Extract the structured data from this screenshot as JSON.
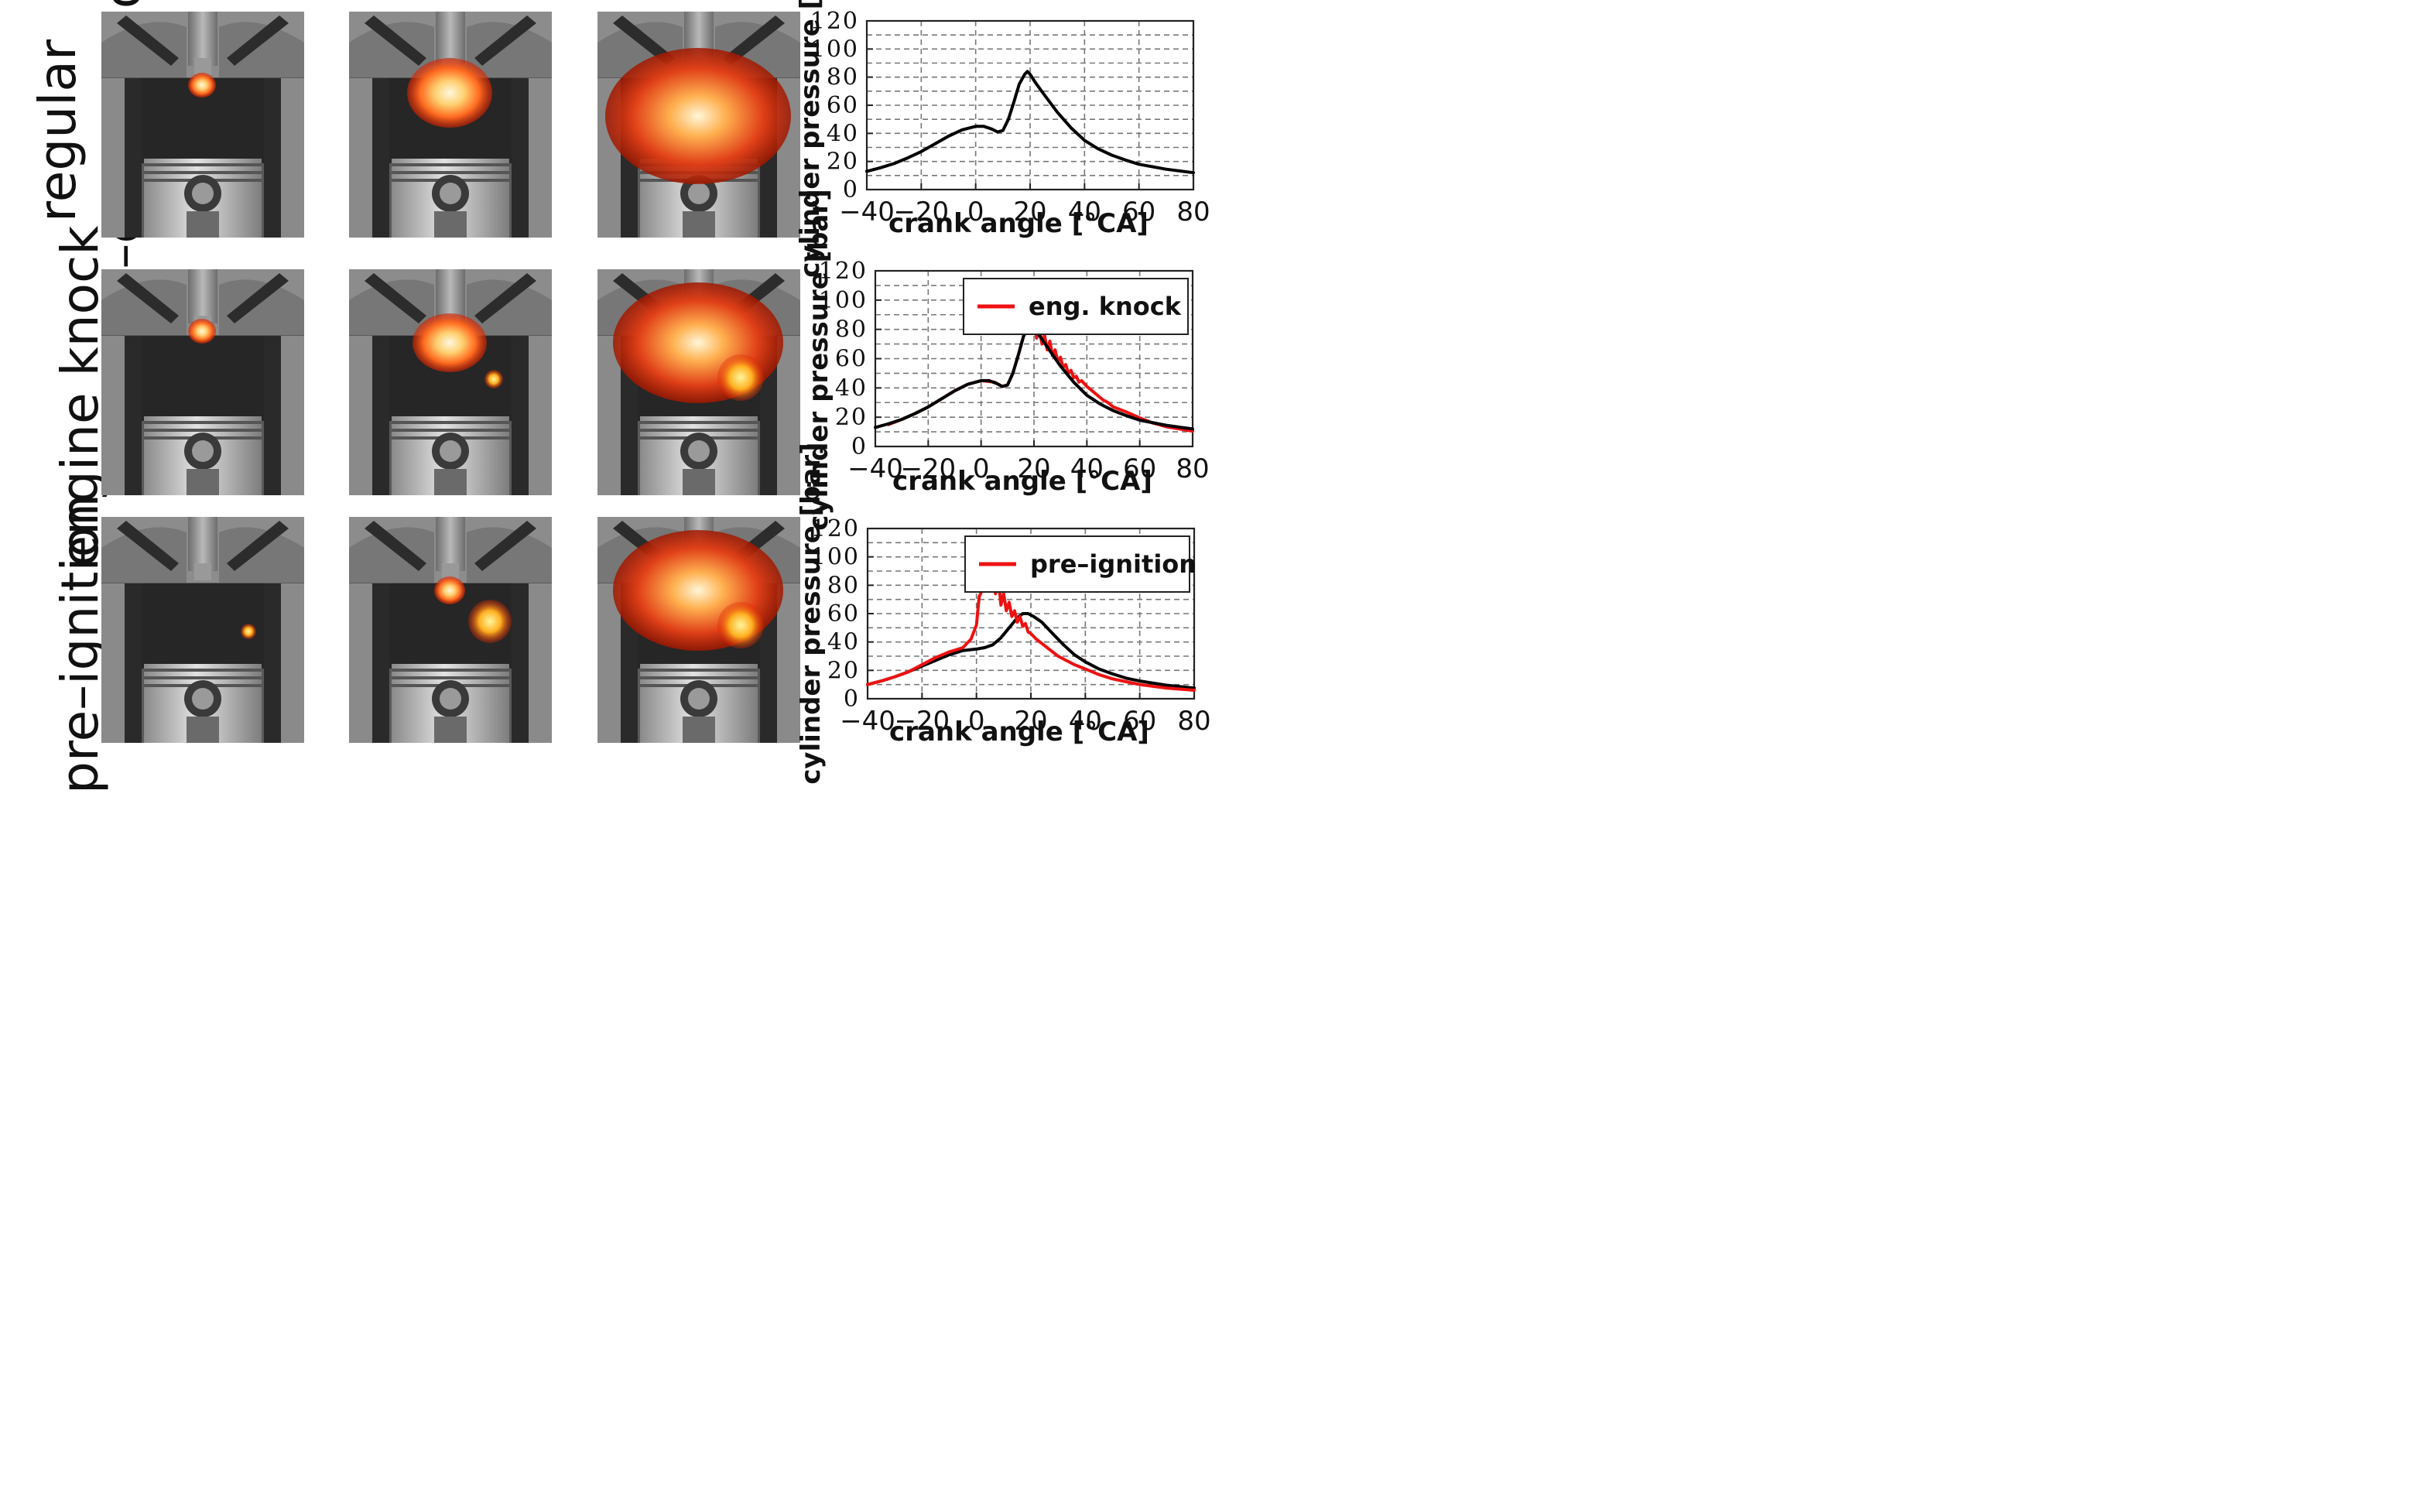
{
  "rows": [
    {
      "label_lines": [
        "regular",
        "SI–combustion"
      ]
    },
    {
      "label_lines": [
        "engine knock"
      ]
    },
    {
      "label_lines": [
        "pre–ignition"
      ]
    }
  ],
  "colors": {
    "reference": "#000000",
    "abnormal": "#ee1111"
  },
  "chart_data": [
    {
      "type": "line",
      "title": "",
      "xlabel": "crank angle [°CA]",
      "ylabel": "cylinder pressure [bar]",
      "xlim": [
        -40,
        80
      ],
      "ylim": [
        0,
        120
      ],
      "xticks": [
        "−40",
        "−20",
        "0",
        "20",
        "40",
        "60",
        "80"
      ],
      "yticks": [
        "0",
        "20",
        "40",
        "60",
        "80",
        "100",
        "120"
      ],
      "grid": true,
      "legend": null,
      "series": [
        {
          "name": "",
          "color": "#000000",
          "x": [
            -40,
            -35,
            -30,
            -25,
            -20,
            -15,
            -10,
            -5,
            0,
            3,
            6,
            8,
            10,
            12,
            14,
            16,
            18,
            19,
            20,
            22,
            25,
            30,
            35,
            40,
            45,
            50,
            55,
            60,
            70,
            80
          ],
          "y": [
            13,
            15.5,
            18.5,
            22.5,
            27,
            32.5,
            38,
            42.5,
            45,
            45,
            43,
            41,
            42,
            50,
            62,
            75,
            82,
            84,
            82,
            76,
            68,
            55,
            44,
            35,
            29,
            24.5,
            21,
            18,
            14.5,
            12
          ]
        }
      ]
    },
    {
      "type": "line",
      "title": "",
      "xlabel": "crank angle [°CA]",
      "ylabel": "cylinder pressure [bar]",
      "xlim": [
        -40,
        80
      ],
      "ylim": [
        0,
        120
      ],
      "xticks": [
        "−40",
        "−20",
        "0",
        "20",
        "40",
        "60",
        "80"
      ],
      "yticks": [
        "0",
        "20",
        "40",
        "60",
        "80",
        "100",
        "120"
      ],
      "grid": true,
      "legend": "top-right",
      "series": [
        {
          "name": "",
          "color": "#000000",
          "x": [
            -40,
            -35,
            -30,
            -25,
            -20,
            -15,
            -10,
            -5,
            0,
            3,
            6,
            8,
            10,
            12,
            14,
            16,
            18,
            19,
            20,
            22,
            25,
            30,
            35,
            40,
            45,
            50,
            55,
            60,
            70,
            80
          ],
          "y": [
            13,
            15.5,
            18.5,
            22.5,
            27,
            32.5,
            38,
            42.5,
            45,
            45,
            43,
            41,
            42,
            50,
            62,
            75,
            82,
            84,
            82,
            76,
            68,
            55,
            44,
            35,
            29,
            24.5,
            21,
            18,
            14.5,
            12
          ]
        },
        {
          "name": "eng. knock",
          "color": "#ee1111",
          "x": [
            -35,
            -30,
            -25,
            -20,
            -15,
            -10,
            -5,
            0,
            5,
            8,
            10,
            12,
            14,
            16,
            17,
            17.5,
            18,
            18.5,
            19,
            20,
            21,
            22,
            23,
            24,
            25,
            26,
            27,
            28,
            29,
            30,
            31,
            32,
            33,
            34,
            35,
            36,
            37,
            38,
            40,
            42,
            44,
            46,
            48,
            50,
            55,
            60,
            65,
            70,
            75,
            80
          ],
          "y": [
            15,
            18.5,
            22.5,
            27,
            32.5,
            38,
            42.5,
            45,
            44,
            41,
            42,
            50,
            62,
            75,
            86,
            96,
            83,
            92,
            80,
            86,
            74,
            82,
            70,
            76,
            66,
            72,
            62,
            66,
            58,
            61,
            54,
            56,
            50,
            52,
            47,
            48,
            44,
            45,
            41,
            38,
            35,
            32,
            30,
            27,
            23.5,
            19.5,
            16,
            13.5,
            12,
            10.5
          ]
        }
      ]
    },
    {
      "type": "line",
      "title": "",
      "xlabel": "crank angle [°CA]",
      "ylabel": "cylinder pressure [bar]",
      "xlim": [
        -40,
        80
      ],
      "ylim": [
        0,
        120
      ],
      "xticks": [
        "−40",
        "−20",
        "0",
        "20",
        "40",
        "60",
        "80"
      ],
      "yticks": [
        "0",
        "20",
        "40",
        "60",
        "80",
        "100",
        "120"
      ],
      "grid": true,
      "legend": "top-right",
      "series": [
        {
          "name": "",
          "color": "#000000",
          "x": [
            -40,
            -35,
            -30,
            -25,
            -20,
            -15,
            -10,
            -5,
            0,
            3,
            6,
            9,
            12,
            15,
            17,
            19,
            21,
            24,
            28,
            32,
            36,
            40,
            45,
            50,
            55,
            60,
            70,
            80
          ],
          "y": [
            10,
            12.5,
            15.5,
            19,
            23,
            27,
            31,
            34,
            35,
            36,
            38,
            43,
            50,
            57,
            60,
            60,
            58,
            54,
            46,
            38,
            31,
            26,
            21,
            17.5,
            14.5,
            12.5,
            9.5,
            7.5
          ]
        },
        {
          "name": "pre–ignition",
          "color": "#ee1111",
          "x": [
            -40,
            -35,
            -30,
            -25,
            -20,
            -15,
            -10,
            -5,
            -2,
            0,
            1,
            2,
            3,
            4,
            5,
            6,
            7,
            8,
            9,
            10,
            11,
            12,
            13,
            14,
            15,
            16,
            17,
            18,
            19,
            20,
            22,
            24,
            26,
            28,
            30,
            33,
            36,
            40,
            45,
            50,
            55,
            60,
            70,
            80
          ],
          "y": [
            10,
            12.5,
            15.5,
            19,
            24,
            29,
            33,
            36,
            42,
            52,
            72,
            76,
            84,
            98,
            78,
            88,
            74,
            86,
            66,
            74,
            62,
            68,
            58,
            62,
            54,
            58,
            51,
            53,
            47,
            46,
            42,
            39,
            36,
            33,
            30,
            27,
            24,
            21,
            17,
            14,
            12,
            10,
            7.5,
            6
          ]
        }
      ]
    }
  ]
}
